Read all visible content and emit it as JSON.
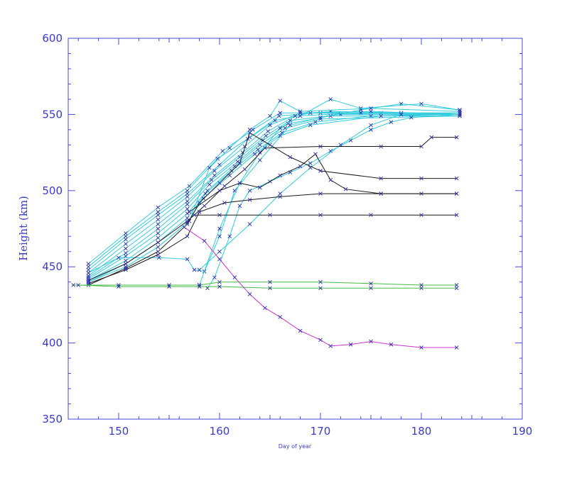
{
  "chart_data": {
    "type": "line",
    "title": "",
    "xlabel": "Day of year",
    "ylabel": "Height (km)",
    "xlim": [
      145,
      190
    ],
    "ylim": [
      350,
      600
    ],
    "xticks": [
      150,
      160,
      170,
      180,
      190
    ],
    "yticks": [
      350,
      400,
      450,
      500,
      550,
      600
    ],
    "marker": "x",
    "grid": false,
    "legend": "none",
    "colors": {
      "axis": "#4a4ad8",
      "text": "#3a3acc",
      "marker": "#2c2ca8"
    },
    "series": [
      {
        "color": "#33ccdd",
        "points": [
          [
            147.0,
            452
          ],
          [
            150.7,
            472
          ],
          [
            153.9,
            489
          ],
          [
            157.0,
            503
          ],
          [
            160.3,
            526
          ],
          [
            163.3,
            540
          ],
          [
            166.0,
            551
          ],
          [
            170.0,
            551
          ],
          [
            176.0,
            551
          ],
          [
            183.8,
            551
          ]
        ]
      },
      {
        "color": "#33ccdd",
        "points": [
          [
            147.0,
            450
          ],
          [
            150.7,
            470
          ],
          [
            153.9,
            486
          ],
          [
            156.8,
            500
          ],
          [
            159.8,
            521
          ],
          [
            163.0,
            535
          ],
          [
            165.9,
            549
          ],
          [
            171.0,
            552
          ],
          [
            178.0,
            551
          ],
          [
            183.8,
            551
          ]
        ]
      },
      {
        "color": "#33ccdd",
        "points": [
          [
            147.0,
            448
          ],
          [
            150.7,
            468
          ],
          [
            153.9,
            484
          ],
          [
            156.8,
            498
          ],
          [
            160.0,
            517
          ],
          [
            162.8,
            534
          ],
          [
            165.5,
            546
          ],
          [
            169.0,
            551
          ],
          [
            178.0,
            550
          ],
          [
            183.8,
            550
          ]
        ]
      },
      {
        "color": "#33ccdd",
        "points": [
          [
            147.0,
            446
          ],
          [
            150.7,
            465
          ],
          [
            153.9,
            481
          ],
          [
            156.8,
            496
          ],
          [
            159.5,
            513
          ],
          [
            162.5,
            529
          ],
          [
            165.0,
            543
          ],
          [
            168.0,
            551
          ],
          [
            175.0,
            552
          ],
          [
            183.8,
            550
          ]
        ]
      },
      {
        "color": "#33ccdd",
        "points": [
          [
            147.0,
            444
          ],
          [
            150.7,
            462
          ],
          [
            153.9,
            478
          ],
          [
            156.8,
            493
          ],
          [
            159.5,
            510
          ],
          [
            162.3,
            525
          ],
          [
            164.8,
            539
          ],
          [
            167.5,
            549
          ],
          [
            174.0,
            551
          ],
          [
            183.8,
            550
          ]
        ]
      },
      {
        "color": "#33ccdd",
        "points": [
          [
            147.0,
            443
          ],
          [
            150.7,
            459
          ],
          [
            153.9,
            475
          ],
          [
            156.8,
            491
          ],
          [
            159.2,
            507
          ],
          [
            162.0,
            522
          ],
          [
            164.6,
            536
          ],
          [
            167.0,
            546
          ],
          [
            172.0,
            550
          ],
          [
            183.8,
            550
          ]
        ]
      },
      {
        "color": "#33ccdd",
        "points": [
          [
            147.0,
            442
          ],
          [
            150.7,
            457
          ],
          [
            153.9,
            472
          ],
          [
            156.8,
            488
          ],
          [
            159.0,
            504
          ],
          [
            161.8,
            519
          ],
          [
            164.3,
            533
          ],
          [
            166.8,
            544
          ],
          [
            171.0,
            549
          ],
          [
            183.8,
            549
          ]
        ]
      },
      {
        "color": "#33ccdd",
        "points": [
          [
            147.0,
            441
          ],
          [
            150.7,
            454
          ],
          [
            153.9,
            469
          ],
          [
            156.8,
            485
          ],
          [
            158.8,
            500
          ],
          [
            161.5,
            516
          ],
          [
            164.0,
            530
          ],
          [
            166.5,
            541
          ],
          [
            170.0,
            547
          ],
          [
            183.8,
            549
          ]
        ]
      },
      {
        "color": "#33ccdd",
        "points": [
          [
            147.0,
            440
          ],
          [
            150.7,
            452
          ],
          [
            153.9,
            466
          ],
          [
            156.8,
            482
          ],
          [
            158.6,
            498
          ],
          [
            161.2,
            513
          ],
          [
            163.8,
            527
          ],
          [
            166.2,
            538
          ],
          [
            169.5,
            545
          ],
          [
            175.0,
            549
          ],
          [
            183.8,
            550
          ]
        ]
      },
      {
        "color": "#33ccdd",
        "points": [
          [
            147.0,
            440
          ],
          [
            150.7,
            450
          ],
          [
            153.9,
            463
          ],
          [
            156.8,
            479
          ],
          [
            158.4,
            495
          ],
          [
            161.0,
            510
          ],
          [
            163.5,
            524
          ],
          [
            166.0,
            536
          ],
          [
            169.0,
            543
          ],
          [
            176.0,
            549
          ],
          [
            183.8,
            551
          ]
        ]
      },
      {
        "color": "#33ccdd",
        "points": [
          [
            147.0,
            446
          ],
          [
            150.0,
            456
          ],
          [
            154.0,
            456
          ],
          [
            156.8,
            455
          ],
          [
            157.5,
            448
          ],
          [
            158.5,
            447
          ],
          [
            160.0,
            470
          ],
          [
            161.5,
            500
          ],
          [
            164.0,
            520
          ],
          [
            167.0,
            543
          ],
          [
            170.0,
            548
          ],
          [
            174.0,
            553
          ],
          [
            178.0,
            557
          ],
          [
            183.8,
            553
          ]
        ]
      },
      {
        "color": "#33ccdd",
        "points": [
          [
            158.0,
            438
          ],
          [
            160.0,
            475
          ],
          [
            162.0,
            505
          ],
          [
            164.0,
            525
          ],
          [
            166.0,
            541
          ],
          [
            168.0,
            549
          ],
          [
            171.0,
            560
          ],
          [
            174.0,
            554
          ],
          [
            180.0,
            557
          ],
          [
            183.8,
            553
          ]
        ]
      },
      {
        "color": "#33ccdd",
        "points": [
          [
            157.0,
            480
          ],
          [
            159.0,
            515
          ],
          [
            161.0,
            528
          ],
          [
            163.0,
            540
          ],
          [
            165.0,
            549
          ],
          [
            166.0,
            559
          ],
          [
            168.0,
            552
          ],
          [
            175.0,
            554
          ],
          [
            183.8,
            552
          ]
        ]
      },
      {
        "color": "#33ccdd",
        "points": [
          [
            158.8,
            436
          ],
          [
            159.5,
            443
          ],
          [
            161.0,
            470
          ],
          [
            162.0,
            490
          ],
          [
            163.0,
            500
          ],
          [
            165.0,
            506
          ],
          [
            167.0,
            512
          ],
          [
            169.0,
            518
          ],
          [
            171.0,
            526
          ],
          [
            173.0,
            533
          ],
          [
            175.0,
            540
          ],
          [
            177.0,
            545
          ],
          [
            179.0,
            548
          ],
          [
            183.8,
            550
          ]
        ]
      },
      {
        "color": "#33ccdd",
        "points": [
          [
            158.0,
            448
          ],
          [
            160.0,
            460
          ],
          [
            163.0,
            478
          ],
          [
            166.0,
            498
          ],
          [
            169.0,
            515
          ],
          [
            172.0,
            530
          ],
          [
            175.0,
            543
          ],
          [
            178.0,
            550
          ],
          [
            183.8,
            551
          ]
        ]
      },
      {
        "color": "#1a1a1a",
        "points": [
          [
            147.0,
            438
          ],
          [
            150.7,
            449
          ],
          [
            153.9,
            460
          ],
          [
            156.8,
            478
          ],
          [
            158.0,
            492
          ],
          [
            160.0,
            505
          ],
          [
            162.0,
            518
          ],
          [
            163.0,
            538
          ],
          [
            165.0,
            530
          ],
          [
            167.0,
            522
          ],
          [
            170.0,
            513
          ],
          [
            176.0,
            508
          ],
          [
            180.0,
            508
          ],
          [
            183.5,
            508
          ]
        ]
      },
      {
        "color": "#1a1a1a",
        "points": [
          [
            147.0,
            439
          ],
          [
            150.7,
            448
          ],
          [
            153.9,
            458
          ],
          [
            156.8,
            470
          ],
          [
            158.0,
            486
          ],
          [
            160.5,
            492
          ],
          [
            163.0,
            494
          ],
          [
            166.0,
            496
          ],
          [
            170.0,
            498
          ],
          [
            176.0,
            498
          ],
          [
            180.0,
            498
          ],
          [
            183.5,
            498
          ]
        ]
      },
      {
        "color": "#1a1a1a",
        "points": [
          [
            147.0,
            441
          ],
          [
            150.7,
            452
          ],
          [
            153.9,
            466
          ],
          [
            156.8,
            480
          ],
          [
            158.5,
            490
          ],
          [
            160.5,
            503
          ],
          [
            162.5,
            514
          ],
          [
            164.5,
            528
          ],
          [
            170.0,
            529
          ],
          [
            176.0,
            529
          ],
          [
            180.0,
            529
          ],
          [
            181.0,
            535
          ],
          [
            183.5,
            535
          ]
        ]
      },
      {
        "color": "#1a1a1a",
        "points": [
          [
            157.5,
            484
          ],
          [
            160.0,
            484
          ],
          [
            165.0,
            484
          ],
          [
            170.0,
            484
          ],
          [
            175.0,
            484
          ],
          [
            180.0,
            484
          ],
          [
            183.5,
            484
          ]
        ]
      },
      {
        "color": "#1a1a1a",
        "points": [
          [
            157.0,
            486
          ],
          [
            160.0,
            500
          ],
          [
            162.0,
            505
          ],
          [
            164.0,
            502
          ],
          [
            166.0,
            510
          ],
          [
            168.0,
            516
          ],
          [
            169.5,
            524
          ],
          [
            171.0,
            507
          ],
          [
            172.5,
            501
          ],
          [
            176.0,
            498
          ],
          [
            183.5,
            498
          ]
        ]
      },
      {
        "color": "#44bb44",
        "points": [
          [
            145.5,
            438
          ],
          [
            150.0,
            438
          ],
          [
            155.0,
            438
          ],
          [
            158.0,
            438
          ],
          [
            160.0,
            440
          ],
          [
            165.0,
            440
          ],
          [
            170.0,
            440
          ],
          [
            175.0,
            439
          ],
          [
            180.0,
            438
          ],
          [
            183.5,
            438
          ]
        ]
      },
      {
        "color": "#44bb44",
        "points": [
          [
            146.0,
            438
          ],
          [
            150.0,
            437
          ],
          [
            155.0,
            437
          ],
          [
            158.0,
            437
          ],
          [
            160.0,
            437
          ],
          [
            165.0,
            436
          ],
          [
            170.0,
            436
          ],
          [
            175.0,
            436
          ],
          [
            180.0,
            436
          ],
          [
            183.5,
            436
          ]
        ]
      },
      {
        "color": "#cc33cc",
        "points": [
          [
            156.5,
            476
          ],
          [
            158.5,
            467
          ],
          [
            160.0,
            455
          ],
          [
            161.5,
            443
          ],
          [
            163.0,
            432
          ],
          [
            164.5,
            423
          ],
          [
            166.0,
            417
          ],
          [
            168.0,
            408
          ],
          [
            170.0,
            402
          ],
          [
            171.0,
            398
          ],
          [
            173.0,
            399
          ],
          [
            175.0,
            401
          ],
          [
            177.0,
            399
          ],
          [
            180.0,
            397
          ],
          [
            183.5,
            397
          ]
        ]
      }
    ]
  }
}
